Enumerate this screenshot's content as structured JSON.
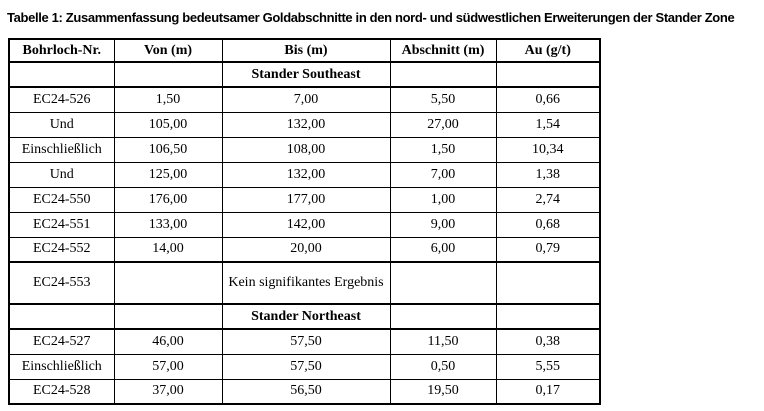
{
  "title": "Tabelle 1: Zusammenfassung bedeutsamer Goldabschnitte in den nord- und südwestlichen Erweiterungen der Stander Zone",
  "table": {
    "columns": [
      "Bohrloch-Nr.",
      "Von (m)",
      "Bis (m)",
      "Abschnitt (m)",
      "Au (g/t)"
    ],
    "rows": [
      {
        "type": "section",
        "cells": [
          "",
          "",
          "Stander Southeast",
          "",
          ""
        ]
      },
      {
        "type": "data",
        "cells": [
          "EC24-526",
          "1,50",
          "7,00",
          "5,50",
          "0,66"
        ]
      },
      {
        "type": "data",
        "cells": [
          "Und",
          "105,00",
          "132,00",
          "27,00",
          "1,54"
        ]
      },
      {
        "type": "data",
        "cells": [
          "Einschließlich",
          "106,50",
          "108,00",
          "1,50",
          "10,34"
        ]
      },
      {
        "type": "data",
        "cells": [
          "Und",
          "125,00",
          "132,00",
          "7,00",
          "1,38"
        ]
      },
      {
        "type": "data",
        "cells": [
          "EC24-550",
          "176,00",
          "177,00",
          "1,00",
          "2,74"
        ]
      },
      {
        "type": "data",
        "cells": [
          "EC24-551",
          "133,00",
          "142,00",
          "9,00",
          "0,68"
        ]
      },
      {
        "type": "data",
        "cells": [
          "EC24-552",
          "14,00",
          "20,00",
          "6,00",
          "0,79"
        ]
      },
      {
        "type": "noresult",
        "cells": [
          "EC24-553",
          "",
          "Kein signifikantes Ergebnis",
          "",
          ""
        ]
      },
      {
        "type": "section",
        "cells": [
          "",
          "",
          "Stander Northeast",
          "",
          ""
        ]
      },
      {
        "type": "data",
        "cells": [
          "EC24-527",
          "46,00",
          "57,50",
          "11,50",
          "0,38"
        ]
      },
      {
        "type": "data",
        "cells": [
          "Einschließlich",
          "57,00",
          "57,50",
          "0,50",
          "5,55"
        ]
      },
      {
        "type": "data",
        "cells": [
          "EC24-528",
          "37,00",
          "56,50",
          "19,50",
          "0,17"
        ]
      }
    ]
  }
}
